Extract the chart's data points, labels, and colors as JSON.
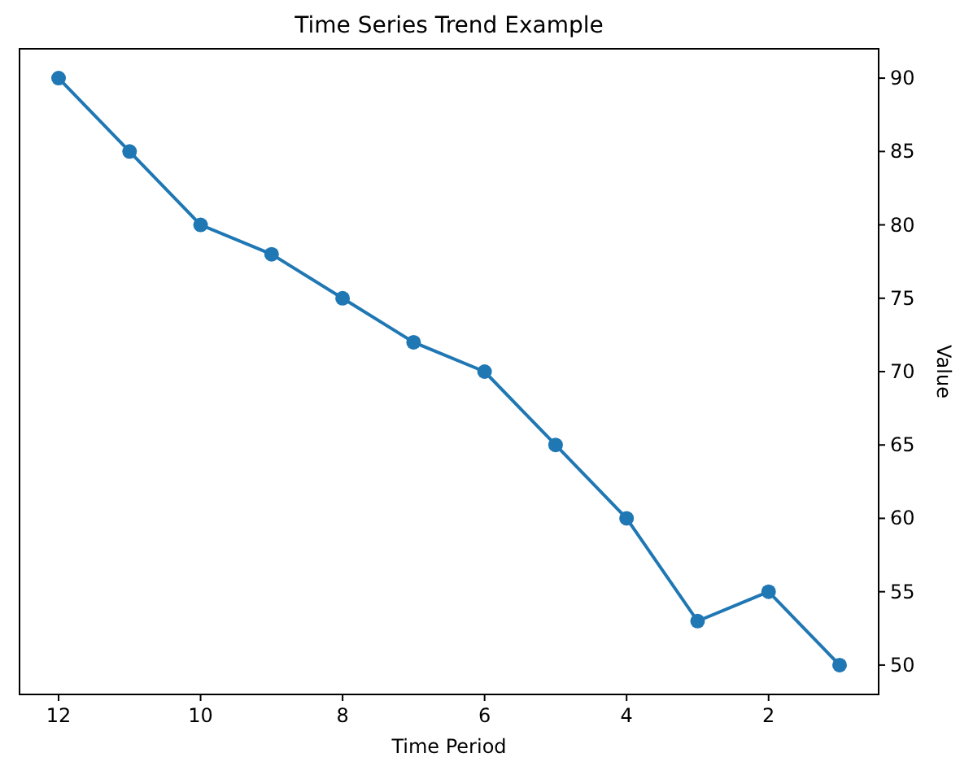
{
  "chart_data": {
    "type": "line",
    "title": "Time Series Trend Example",
    "xlabel": "Time Period",
    "ylabel": "Value",
    "x": [
      1,
      2,
      3,
      4,
      5,
      6,
      7,
      8,
      9,
      10,
      11,
      12
    ],
    "series": [
      {
        "color": "#1f77b4",
        "values": [
          50,
          55,
          53,
          60,
          65,
          70,
          72,
          75,
          78,
          80,
          85,
          90
        ]
      }
    ],
    "xlim": [
      12.55,
      0.45
    ],
    "xticks": [
      2,
      4,
      6,
      8,
      10,
      12
    ],
    "ylim": [
      48,
      92
    ],
    "yticks": [
      50,
      55,
      60,
      65,
      70,
      75,
      80,
      85,
      90
    ],
    "marker": "circle",
    "line_style": "solid"
  }
}
